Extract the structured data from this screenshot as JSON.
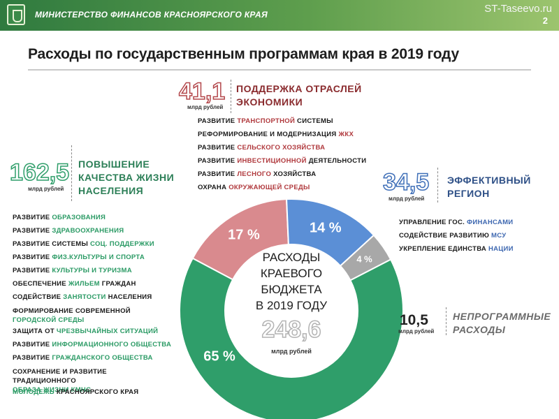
{
  "header": {
    "ministry": "МИНИСТЕРСТВО ФИНАНСОВ КРАСНОЯРСКОГО КРАЯ",
    "site": "ST-Taseevo.ru",
    "slide_number": "2"
  },
  "page_title": "Расходы по государственным программам края в 2019 году",
  "colors": {
    "header_green": "#2f7a3f",
    "quality_green": "#2f9e6a",
    "economy_red": "#d98a8e",
    "region_blue": "#5b8fd6",
    "nonprog_gray": "#a8a8a8"
  },
  "groups": {
    "economy": {
      "amount": "41,1",
      "unit": "млрд рублей",
      "title_line1": "ПОДДЕРЖКА ОТРАСЛЕЙ",
      "title_line2": "ЭКОНОМИКИ",
      "programs": [
        {
          "pre": "РАЗВИТИЕ ",
          "hl": "ТРАНСПОРТНОЙ",
          "post": " СИСТЕМЫ"
        },
        {
          "pre": "РЕФОРМИРОВАНИЕ И МОДЕРНИЗАЦИЯ ",
          "hl": "ЖКХ",
          "post": ""
        },
        {
          "pre": "РАЗВИТИЕ ",
          "hl": "СЕЛЬСКОГО ХОЗЯЙСТВА",
          "post": ""
        },
        {
          "pre": "РАЗВИТИЕ ",
          "hl": "ИНВЕСТИЦИОННОЙ",
          "post": " ДЕЯТЕЛЬНОСТИ"
        },
        {
          "pre": "РАЗВИТИЕ ",
          "hl": "ЛЕСНОГО",
          "post": " ХОЗЯЙСТВА"
        },
        {
          "pre": "ОХРАНА ",
          "hl": "ОКРУЖАЮЩЕЙ СРЕДЫ",
          "post": ""
        }
      ]
    },
    "quality": {
      "amount": "162,5",
      "unit": "млрд рублей",
      "title_line1": "ПОВЫШЕНИЕ",
      "title_line2": "КАЧЕСТВА ЖИЗНИ",
      "title_line3": "НАСЕЛЕНИЯ",
      "programs": [
        {
          "pre": "РАЗВИТИЕ ",
          "hl": "ОБРАЗОВАНИЯ",
          "post": "",
          "l2": ""
        },
        {
          "pre": "РАЗВИТИЕ ",
          "hl": "ЗДРАВООХРАНЕНИЯ",
          "post": "",
          "l2": ""
        },
        {
          "pre": "РАЗВИТИЕ СИСТЕМЫ ",
          "hl": "СОЦ. ПОДДЕРЖКИ",
          "post": "",
          "l2": ""
        },
        {
          "pre": "РАЗВИТИЕ ",
          "hl": "ФИЗ.КУЛЬТУРЫ И СПОРТА",
          "post": "",
          "l2": ""
        },
        {
          "pre": "РАЗВИТИЕ ",
          "hl": "КУЛЬТУРЫ И ТУРИЗМА",
          "post": "",
          "l2": ""
        },
        {
          "pre": "ОБЕСПЕЧЕНИЕ ",
          "hl": "ЖИЛЬЕМ",
          "post": " ГРАЖДАН",
          "l2": ""
        },
        {
          "pre": "СОДЕЙСТВИЕ ",
          "hl": "ЗАНЯТОСТИ",
          "post": " НАСЕЛЕНИЯ",
          "l2": ""
        },
        {
          "pre": "ФОРМИРОВАНИЕ СОВРЕМЕННОЙ",
          "hl": "",
          "post": "",
          "l2": "ГОРОДСКОЙ СРЕДЫ"
        },
        {
          "pre": "ЗАЩИТА ОТ ",
          "hl": "ЧРЕЗВЫЧАЙНЫХ СИТУАЦИЙ",
          "post": "",
          "l2": ""
        },
        {
          "pre": "РАЗВИТИЕ ",
          "hl": "ИНФОРМАЦИОННОГО ОБЩЕСТВА",
          "post": "",
          "l2": ""
        },
        {
          "pre": "РАЗВИТИЕ ",
          "hl": "ГРАЖДАНСКОГО ОБЩЕСТВА",
          "post": "",
          "l2": ""
        },
        {
          "pre": "СОХРАНЕНИЕ И РАЗВИТИЕ ТРАДИЦИОННОГО",
          "hl": "",
          "post": "",
          "l2": "ОБРАЗА ЖИЗНИ КМНС"
        },
        {
          "pre": "",
          "hl": "МОЛОДЕЖЬ",
          "post": " КРАСНОЯРСКОГО КРАЯ",
          "l2": ""
        }
      ]
    },
    "region": {
      "amount": "34,5",
      "unit": "млрд рублей",
      "title_line1": "ЭФФЕКТИВНЫЙ",
      "title_line2": "РЕГИОН",
      "programs": [
        {
          "pre": "УПРАВЛЕНИЕ ГОС. ",
          "hl": "ФИНАНСАМИ",
          "post": ""
        },
        {
          "pre": "СОДЕЙСТВИЕ РАЗВИТИЮ ",
          "hl": "МСУ",
          "post": ""
        },
        {
          "pre": "УКРЕПЛЕНИЕ ЕДИНСТВА ",
          "hl": "НАЦИИ",
          "post": ""
        }
      ]
    },
    "nonprog": {
      "amount": "10,5",
      "unit": "млрд рублей",
      "title_line1": "НЕПРОГРАММНЫЕ",
      "title_line2": "РАСХОДЫ"
    }
  },
  "chart_data": {
    "type": "pie",
    "donut": true,
    "title": "Расходы по государственным программам края в 2019 году",
    "center_lines": [
      "РАСХОДЫ",
      "КРАЕВОГО",
      "БЮДЖЕТА",
      "В 2019 ГОДУ"
    ],
    "total": "248,6",
    "total_unit": "млрд рублей",
    "slices": [
      {
        "name": "ПОВЫШЕНИЕ КАЧЕСТВА ЖИЗНИ НАСЕЛЕНИЯ",
        "value": 162.5,
        "label": "65 %",
        "color": "#2f9e6a"
      },
      {
        "name": "ПОДДЕРЖКА ОТРАСЛЕЙ ЭКОНОМИКИ",
        "value": 41.1,
        "label": "17 %",
        "color": "#d98a8e"
      },
      {
        "name": "ЭФФЕКТИВНЫЙ РЕГИОН",
        "value": 34.5,
        "label": "14 %",
        "color": "#5b8fd6"
      },
      {
        "name": "НЕПРОГРАММНЫЕ РАСХОДЫ",
        "value": 10.5,
        "label": "4 %",
        "color": "#a8a8a8"
      }
    ]
  }
}
